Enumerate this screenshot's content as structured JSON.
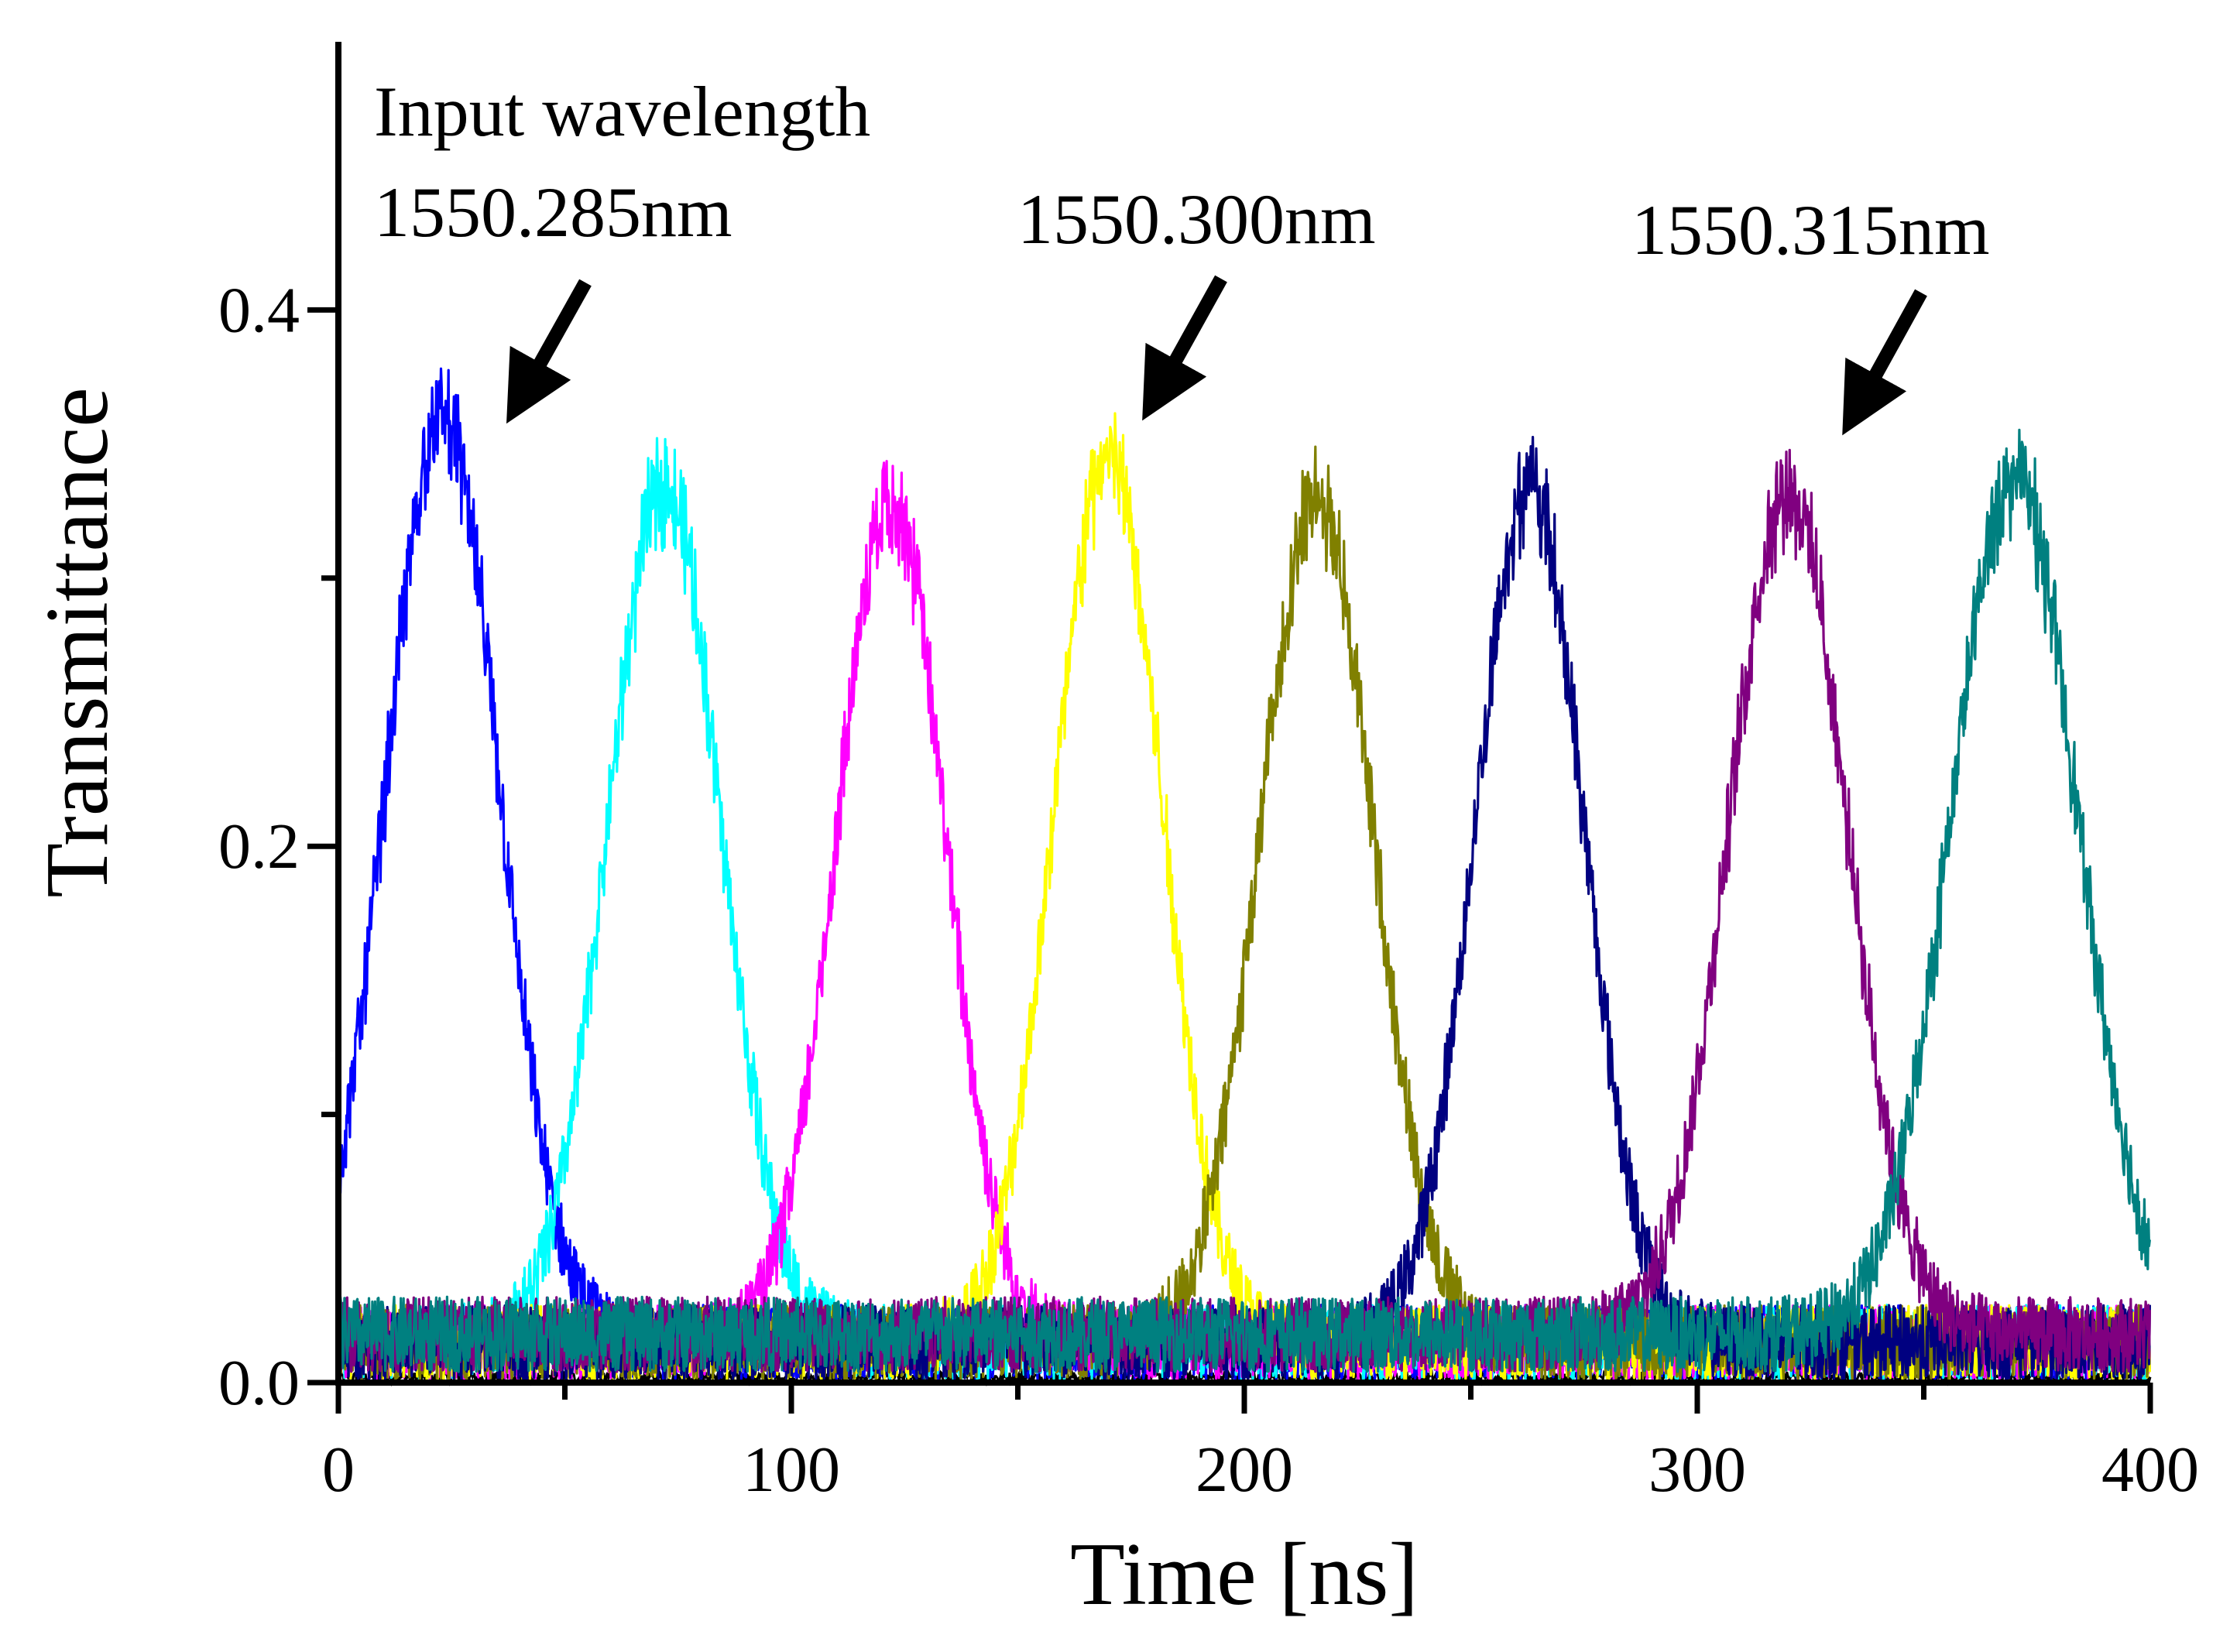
{
  "chart_data": {
    "type": "line",
    "title": "",
    "xlabel": "Time [ns]",
    "ylabel": "Transmittance",
    "xlim": [
      0,
      400
    ],
    "ylim": [
      0,
      0.5
    ],
    "x_ticks": [
      0,
      100,
      200,
      300,
      400
    ],
    "x_tick_labels": [
      "0",
      "100",
      "200",
      "300",
      "400"
    ],
    "x_minor_ticks": [
      50,
      150,
      250,
      350
    ],
    "y_ticks": [
      0,
      0.2,
      0.4
    ],
    "y_tick_labels": [
      "0.0",
      "0.2",
      "0.4"
    ],
    "y_minor_ticks": [
      0.1,
      0.3
    ],
    "grid": false,
    "legend": "none",
    "series_model": "noisy gaussian pulse: baseline + peak*exp(-(t-peak_time)^2/(2*width^2))",
    "series": [
      {
        "name": "pulse-1",
        "color": "#0000FF",
        "peak_time": 23,
        "peak": 0.345,
        "width_ns": 12.5,
        "baseline": 0.015
      },
      {
        "name": "pulse-2",
        "color": "#00FFFF",
        "peak_time": 72,
        "peak": 0.32,
        "width_ns": 12.5,
        "baseline": 0.015
      },
      {
        "name": "pulse-3",
        "color": "#FF00FF",
        "peak_time": 122,
        "peak": 0.315,
        "width_ns": 12,
        "baseline": 0.015
      },
      {
        "name": "pulse-4",
        "color": "#FFFF00",
        "peak_time": 170,
        "peak": 0.33,
        "width_ns": 12,
        "baseline": 0.015
      },
      {
        "name": "pulse-5",
        "color": "#808000",
        "peak_time": 216,
        "peak": 0.315,
        "width_ns": 12.5,
        "baseline": 0.015
      },
      {
        "name": "pulse-6",
        "color": "#000080",
        "peak_time": 263,
        "peak": 0.32,
        "width_ns": 12,
        "baseline": 0.015
      },
      {
        "name": "pulse-7",
        "color": "#800080",
        "peak_time": 320,
        "peak": 0.315,
        "width_ns": 13,
        "baseline": 0.018
      },
      {
        "name": "pulse-8",
        "color": "#008080",
        "peak_time": 370,
        "peak": 0.32,
        "width_ns": 14,
        "baseline": 0.018
      }
    ],
    "annotations": [
      {
        "lines": [
          "Input wavelength",
          "1550.285nm"
        ],
        "points_to_time": 23
      },
      {
        "lines": [
          "1550.300nm"
        ],
        "points_to_time": 170
      },
      {
        "lines": [
          "1550.315nm"
        ],
        "points_to_time": 320
      }
    ]
  }
}
